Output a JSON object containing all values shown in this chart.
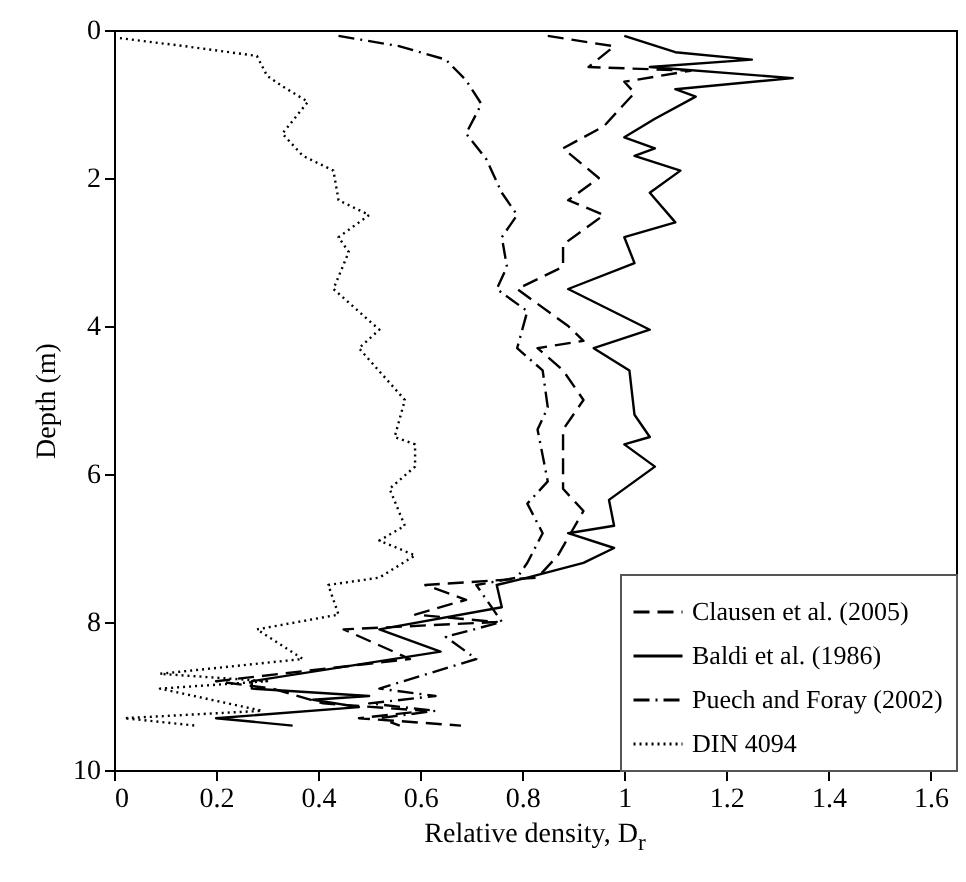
{
  "chart_data": {
    "type": "line",
    "xlabel": "Relative density, D$_{r}$",
    "ylabel": "Depth (m)",
    "xlim": [
      0,
      1.65
    ],
    "xticks": [
      0,
      0.2,
      0.4,
      0.6,
      0.8,
      1,
      1.2,
      1.4,
      1.6
    ],
    "ylim": [
      10,
      0
    ],
    "yticks": [
      0,
      2,
      4,
      6,
      8,
      10
    ],
    "grid": false,
    "legend": "bottom right",
    "series": [
      {
        "name": "Clausen et al. (2005)",
        "color": "#000000",
        "line_style": "dashed",
        "x": [
          0.85,
          0.98,
          0.93,
          1.13,
          1.0,
          1.02,
          0.96,
          0.88,
          0.95,
          0.89,
          0.96,
          0.88,
          0.88,
          0.79,
          0.89,
          0.92,
          0.83,
          0.88,
          0.92,
          0.88,
          0.88,
          0.92,
          0.87,
          0.83,
          0.61,
          0.69,
          0.59,
          0.75,
          0.45,
          0.58,
          0.2,
          0.31,
          0.41,
          0.61,
          0.48,
          0.68
        ],
        "values": [
          0.08,
          0.22,
          0.5,
          0.55,
          0.7,
          0.85,
          1.3,
          1.6,
          2.0,
          2.3,
          2.5,
          2.9,
          3.2,
          3.5,
          4.0,
          4.2,
          4.3,
          4.6,
          5.0,
          5.4,
          6.2,
          6.5,
          7.1,
          7.4,
          7.5,
          7.7,
          7.9,
          8.0,
          8.1,
          8.5,
          8.8,
          8.9,
          9.1,
          9.2,
          9.3,
          9.4
        ]
      },
      {
        "name": "Baldi et al. (1986)",
        "color": "#000000",
        "line_style": "solid",
        "x": [
          1.0,
          1.1,
          1.25,
          1.05,
          1.33,
          1.1,
          1.14,
          1.06,
          1.0,
          1.06,
          1.02,
          1.11,
          1.05,
          1.1,
          1.0,
          1.02,
          0.89,
          1.05,
          0.94,
          1.01,
          1.02,
          1.05,
          1.0,
          1.06,
          0.97,
          0.98,
          0.89,
          0.98,
          0.92,
          0.81,
          0.75,
          0.76,
          0.52,
          0.64,
          0.27,
          0.27,
          0.5,
          0.39,
          0.48,
          0.2,
          0.35
        ],
        "values": [
          0.08,
          0.3,
          0.4,
          0.5,
          0.65,
          0.8,
          0.9,
          1.2,
          1.45,
          1.6,
          1.7,
          1.9,
          2.2,
          2.6,
          2.8,
          3.15,
          3.5,
          4.05,
          4.3,
          4.6,
          5.2,
          5.5,
          5.6,
          5.9,
          6.35,
          6.7,
          6.8,
          7.0,
          7.2,
          7.4,
          7.5,
          7.8,
          8.1,
          8.4,
          8.8,
          8.9,
          9.0,
          9.05,
          9.15,
          9.3,
          9.4
        ]
      },
      {
        "name": "Puech and Foray (2002)",
        "color": "#000000",
        "line_style": "dashdot",
        "x": [
          0.44,
          0.56,
          0.65,
          0.69,
          0.72,
          0.69,
          0.73,
          0.76,
          0.79,
          0.76,
          0.77,
          0.75,
          0.81,
          0.79,
          0.84,
          0.85,
          0.83,
          0.85,
          0.81,
          0.84,
          0.81,
          0.79,
          0.71,
          0.73,
          0.76,
          0.65,
          0.71,
          0.52,
          0.63,
          0.5,
          0.63,
          0.52,
          0.56
        ],
        "values": [
          0.08,
          0.22,
          0.4,
          0.68,
          1.0,
          1.4,
          1.75,
          2.2,
          2.5,
          2.8,
          3.2,
          3.5,
          3.8,
          4.3,
          4.6,
          5.1,
          5.4,
          6.1,
          6.4,
          6.8,
          7.2,
          7.4,
          7.5,
          7.7,
          8.0,
          8.2,
          8.5,
          8.9,
          9.0,
          9.1,
          9.2,
          9.3,
          9.4
        ]
      },
      {
        "name": "DIN 4094",
        "color": "#000000",
        "line_style": "dotted",
        "x": [
          0.0,
          0.14,
          0.28,
          0.3,
          0.33,
          0.38,
          0.33,
          0.37,
          0.43,
          0.44,
          0.5,
          0.44,
          0.46,
          0.43,
          0.52,
          0.48,
          0.57,
          0.55,
          0.59,
          0.59,
          0.54,
          0.57,
          0.52,
          0.59,
          0.52,
          0.42,
          0.44,
          0.28,
          0.37,
          0.09,
          0.3,
          0.09,
          0.29,
          0.02,
          0.16
        ],
        "values": [
          0.1,
          0.22,
          0.35,
          0.62,
          0.76,
          0.97,
          1.4,
          1.7,
          1.9,
          2.3,
          2.5,
          2.8,
          3.0,
          3.5,
          4.05,
          4.3,
          5.0,
          5.5,
          5.6,
          5.9,
          6.2,
          6.7,
          6.9,
          7.1,
          7.4,
          7.5,
          7.9,
          8.1,
          8.5,
          8.7,
          8.8,
          8.9,
          9.2,
          9.3,
          9.4
        ]
      }
    ]
  }
}
